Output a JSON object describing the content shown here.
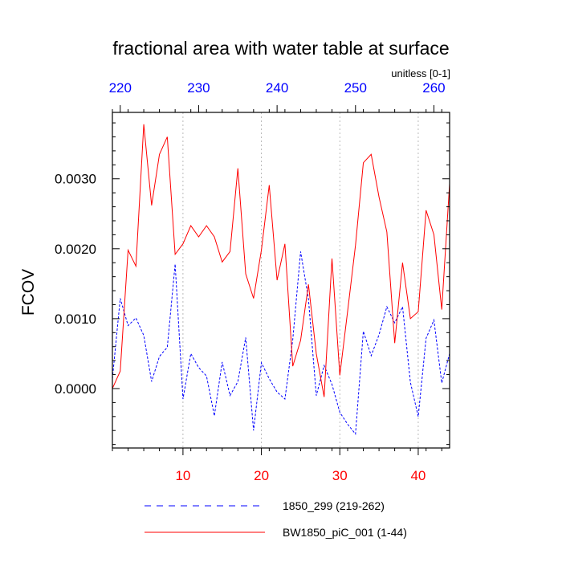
{
  "chart_data": {
    "type": "line",
    "title": "fractional area with water table at surface",
    "units_label": "unitless [0-1]",
    "ylabel": "FCOV",
    "ylim": [
      -0.00085,
      0.00395
    ],
    "yticks": [
      0.0,
      0.001,
      0.002,
      0.003
    ],
    "ytick_labels": [
      "0.0000",
      "0.0010",
      "0.0020",
      "0.0030"
    ],
    "x_bottom": {
      "range": [
        1,
        44
      ],
      "ticks": [
        10,
        20,
        30,
        40
      ],
      "tick_labels": [
        "10",
        "20",
        "30",
        "40"
      ],
      "color": "#ff0000"
    },
    "x_top": {
      "range": [
        219,
        262
      ],
      "ticks": [
        220,
        230,
        240,
        250,
        260
      ],
      "tick_labels": [
        "220",
        "230",
        "240",
        "250",
        "260"
      ],
      "color": "#0000ff"
    },
    "gridlines_x": [
      10,
      20,
      30,
      40
    ],
    "series": [
      {
        "name": "BW1850_piC_001 (1-44)",
        "color": "#ff0000",
        "style": "solid",
        "axis": "bottom",
        "x": [
          1,
          2,
          3,
          4,
          5,
          6,
          7,
          8,
          9,
          10,
          11,
          12,
          13,
          14,
          15,
          16,
          17,
          18,
          19,
          20,
          21,
          22,
          23,
          24,
          25,
          26,
          27,
          28,
          29,
          30,
          31,
          32,
          33,
          34,
          35,
          36,
          37,
          38,
          39,
          40,
          41,
          42,
          43,
          44
        ],
        "values": [
          0.0,
          0.00025,
          0.00198,
          0.00175,
          0.00378,
          0.00262,
          0.00335,
          0.0036,
          0.00192,
          0.00207,
          0.00233,
          0.00217,
          0.00233,
          0.00217,
          0.00181,
          0.00196,
          0.00315,
          0.00164,
          0.00129,
          0.00198,
          0.00291,
          0.00155,
          0.00207,
          0.00032,
          0.00069,
          0.00149,
          0.0005,
          -0.00012,
          0.00186,
          0.00019,
          0.00111,
          0.00205,
          0.00323,
          0.00335,
          0.00274,
          0.00224,
          0.00065,
          0.0018,
          0.001,
          0.0011,
          0.00255,
          0.0022,
          0.00113,
          0.00293
        ]
      },
      {
        "name": "1850_299 (219-262)",
        "color": "#0000ff",
        "style": "dashed",
        "axis": "top",
        "x": [
          219,
          220,
          221,
          222,
          223,
          224,
          225,
          226,
          227,
          228,
          229,
          230,
          231,
          232,
          233,
          234,
          235,
          236,
          237,
          238,
          239,
          240,
          241,
          242,
          243,
          244,
          245,
          246,
          247,
          248,
          249,
          250,
          251,
          252,
          253,
          254,
          255,
          256,
          257,
          258,
          259,
          260,
          261,
          262
        ],
        "values": [
          0.00014,
          0.00129,
          0.0009,
          0.00101,
          0.00076,
          0.0001,
          0.00046,
          0.00059,
          0.00178,
          -0.00015,
          0.0005,
          0.0003,
          0.00018,
          -0.00039,
          0.00038,
          -0.0001,
          0.0001,
          0.00073,
          -0.0006,
          0.00037,
          0.00014,
          -5e-05,
          -0.00015,
          0.0007,
          0.00196,
          0.00128,
          -0.0001,
          0.00033,
          6e-05,
          -0.00034,
          -0.00051,
          -0.00065,
          0.00082,
          0.00047,
          0.00077,
          0.00117,
          0.00094,
          0.00117,
          9e-05,
          -0.0004,
          0.00072,
          0.00098,
          8e-05,
          0.0005
        ]
      }
    ],
    "legend_placement": "bottom"
  }
}
